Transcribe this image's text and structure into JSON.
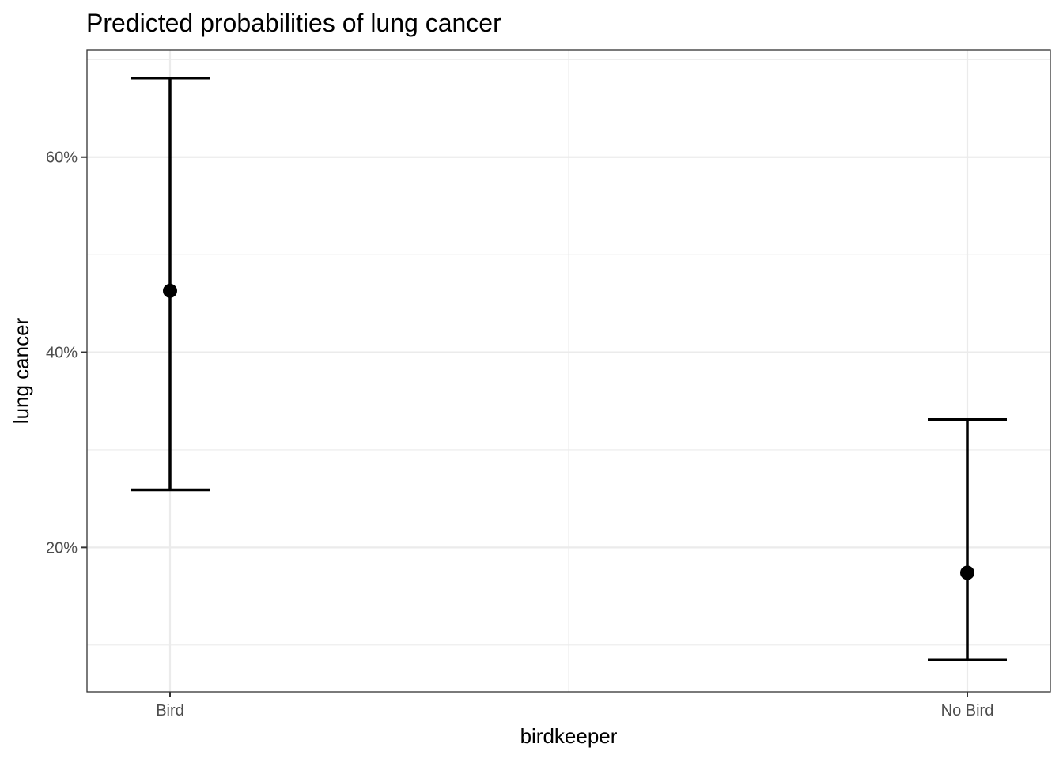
{
  "chart_data": {
    "type": "scatter",
    "title": "Predicted probabilities of lung cancer",
    "xlabel": "birdkeeper",
    "ylabel": "lung cancer",
    "categories": [
      "Bird",
      "No Bird"
    ],
    "points": [
      {
        "category": "Bird",
        "estimate": 46.3,
        "ci_low": 25.9,
        "ci_high": 68.1
      },
      {
        "category": "No Bird",
        "estimate": 17.4,
        "ci_low": 8.5,
        "ci_high": 33.1
      }
    ],
    "yticks": [
      {
        "value": 20,
        "label": "20%"
      },
      {
        "value": 40,
        "label": "40%"
      },
      {
        "value": 60,
        "label": "60%"
      }
    ],
    "y_minor": [
      10,
      30,
      50,
      70
    ],
    "ylim": [
      5.2,
      71.0
    ],
    "grid": true,
    "colors": {
      "marks": "#000000",
      "grid": "#ebebeb",
      "border": "#333333"
    }
  }
}
